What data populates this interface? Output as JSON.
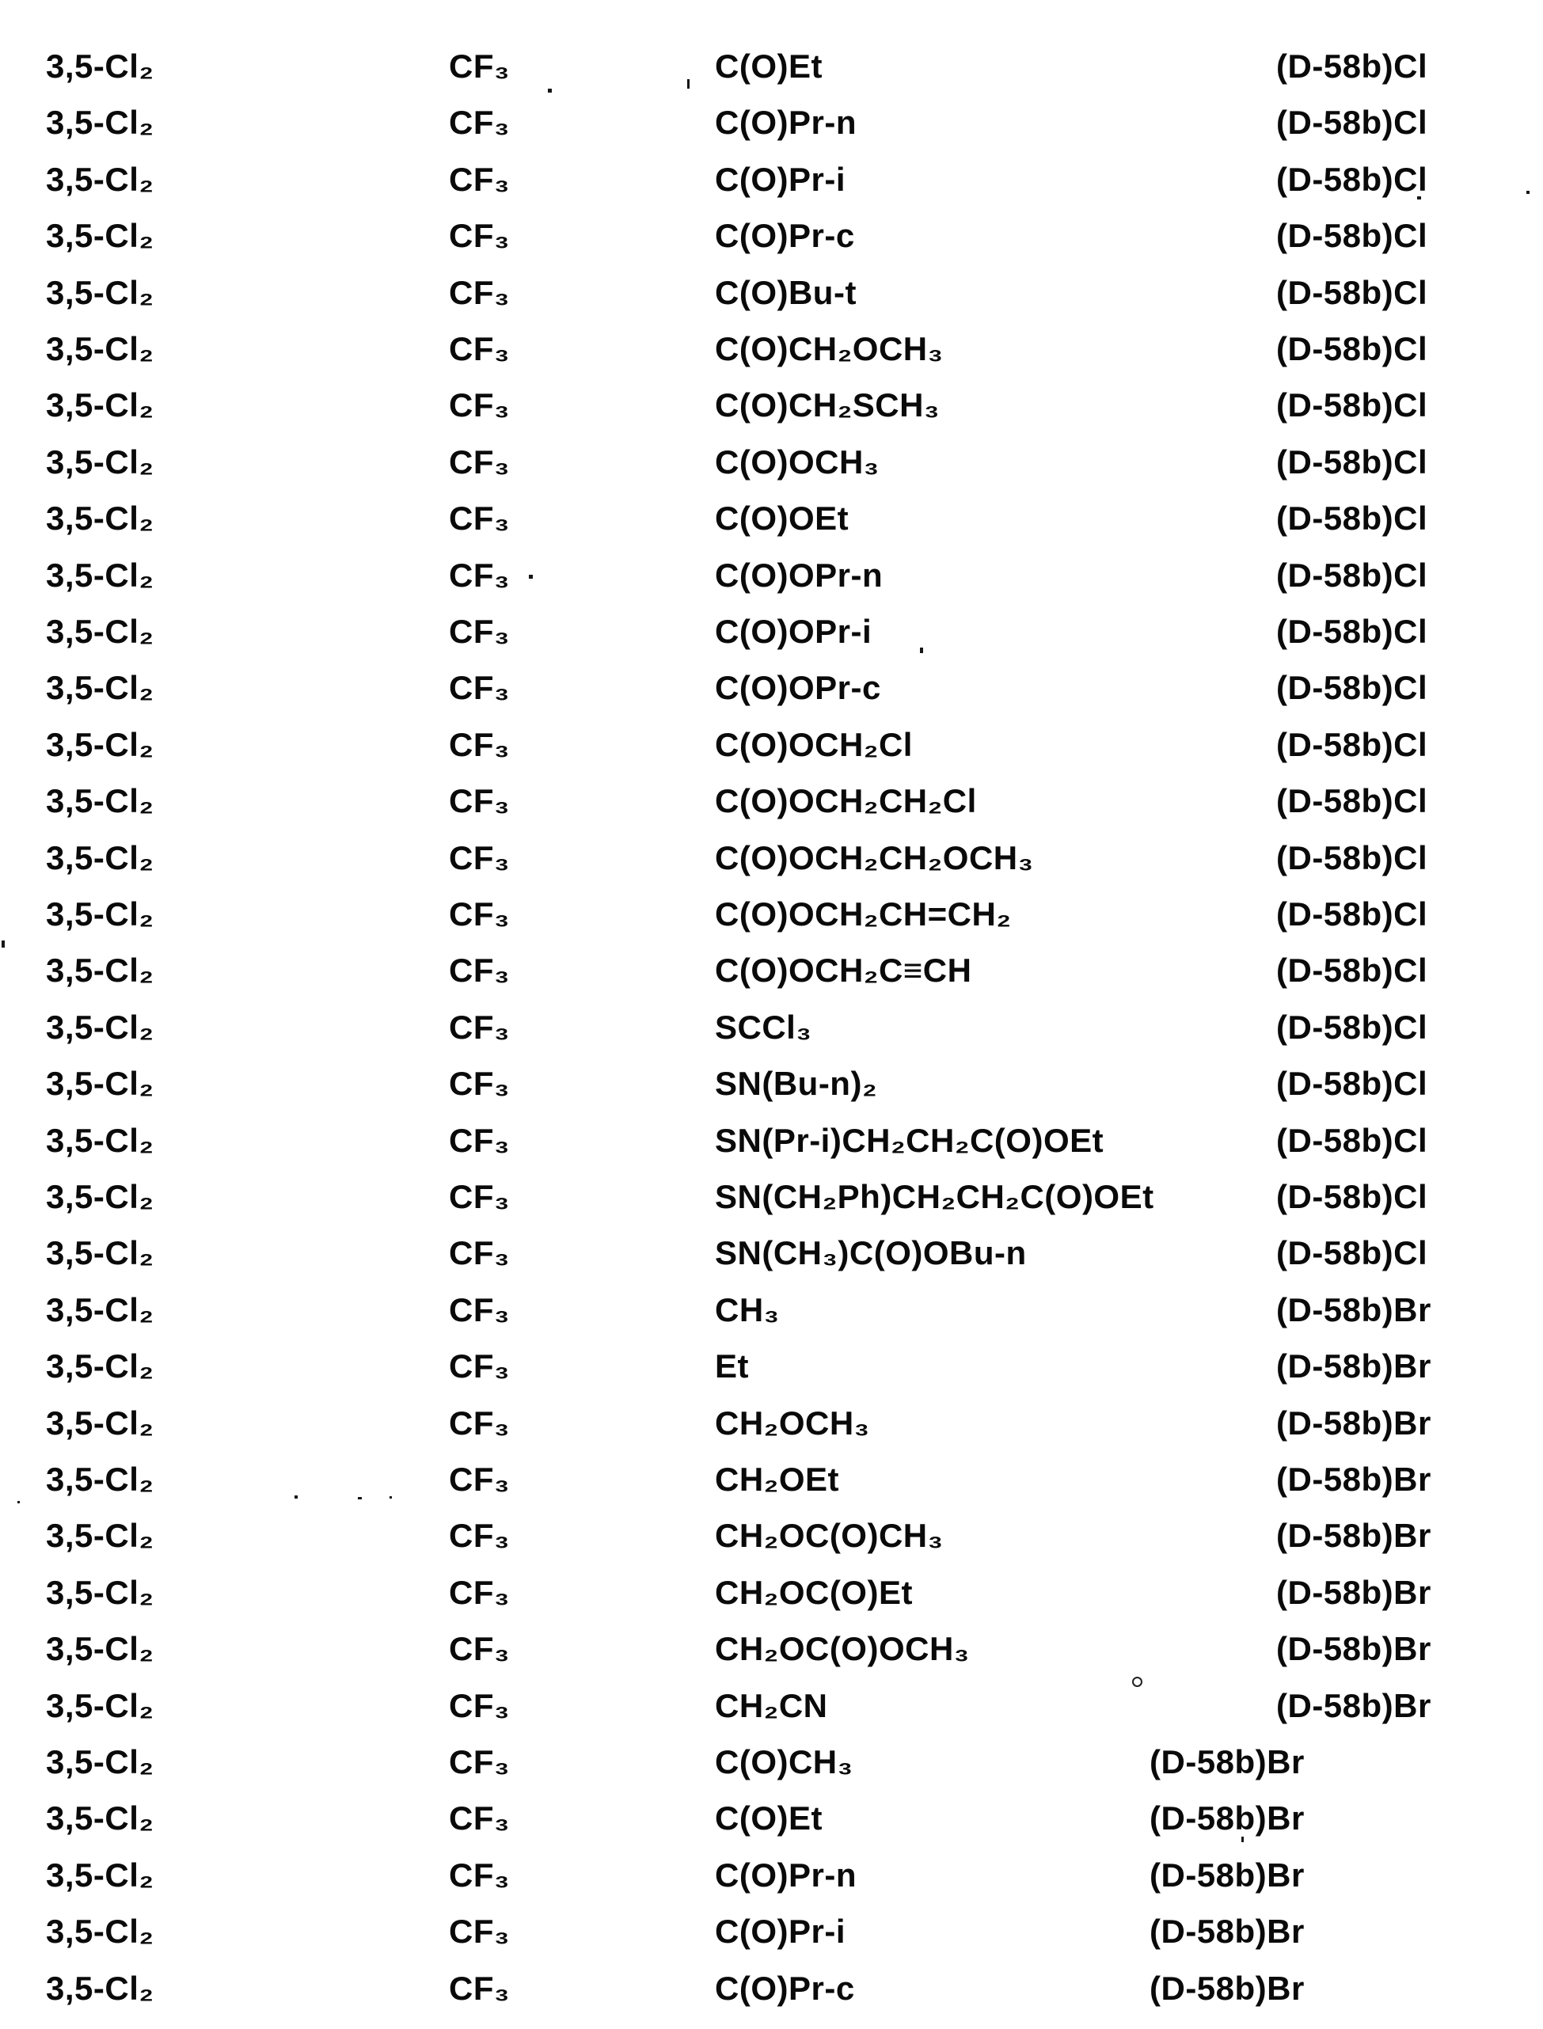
{
  "page": {
    "background": "#ffffff",
    "text_color": "#0a0a0a"
  },
  "table": {
    "rows": [
      {
        "c1": "3,5-Cl₂",
        "c2": "CF₃",
        "c3": "C(O)Et",
        "c4": "(D-58b)Cl",
        "shifted": false
      },
      {
        "c1": "3,5-Cl₂",
        "c2": "CF₃",
        "c3": "C(O)Pr-n",
        "c4": "(D-58b)Cl",
        "shifted": false
      },
      {
        "c1": "3,5-Cl₂",
        "c2": "CF₃",
        "c3": "C(O)Pr-i",
        "c4": "(D-58b)Cl",
        "shifted": false
      },
      {
        "c1": "3,5-Cl₂",
        "c2": "CF₃",
        "c3": "C(O)Pr-c",
        "c4": "(D-58b)Cl",
        "shifted": false
      },
      {
        "c1": "3,5-Cl₂",
        "c2": "CF₃",
        "c3": "C(O)Bu-t",
        "c4": "(D-58b)Cl",
        "shifted": false
      },
      {
        "c1": "3,5-Cl₂",
        "c2": "CF₃",
        "c3": "C(O)CH₂OCH₃",
        "c4": "(D-58b)Cl",
        "shifted": false
      },
      {
        "c1": "3,5-Cl₂",
        "c2": "CF₃",
        "c3": "C(O)CH₂SCH₃",
        "c4": "(D-58b)Cl",
        "shifted": false
      },
      {
        "c1": "3,5-Cl₂",
        "c2": "CF₃",
        "c3": "C(O)OCH₃",
        "c4": "(D-58b)Cl",
        "shifted": false
      },
      {
        "c1": "3,5-Cl₂",
        "c2": "CF₃",
        "c3": "C(O)OEt",
        "c4": "(D-58b)Cl",
        "shifted": false
      },
      {
        "c1": "3,5-Cl₂",
        "c2": "CF₃",
        "c3": "C(O)OPr-n",
        "c4": "(D-58b)Cl",
        "shifted": false
      },
      {
        "c1": "3,5-Cl₂",
        "c2": "CF₃",
        "c3": "C(O)OPr-i",
        "c4": "(D-58b)Cl",
        "shifted": false
      },
      {
        "c1": "3,5-Cl₂",
        "c2": "CF₃",
        "c3": "C(O)OPr-c",
        "c4": "(D-58b)Cl",
        "shifted": false
      },
      {
        "c1": "3,5-Cl₂",
        "c2": "CF₃",
        "c3": "C(O)OCH₂Cl",
        "c4": "(D-58b)Cl",
        "shifted": false
      },
      {
        "c1": "3,5-Cl₂",
        "c2": "CF₃",
        "c3": "C(O)OCH₂CH₂Cl",
        "c4": "(D-58b)Cl",
        "shifted": false
      },
      {
        "c1": "3,5-Cl₂",
        "c2": "CF₃",
        "c3": "C(O)OCH₂CH₂OCH₃",
        "c4": "(D-58b)Cl",
        "shifted": false
      },
      {
        "c1": "3,5-Cl₂",
        "c2": "CF₃",
        "c3": "C(O)OCH₂CH=CH₂",
        "c4": "(D-58b)Cl",
        "shifted": false
      },
      {
        "c1": "3,5-Cl₂",
        "c2": "CF₃",
        "c3": "C(O)OCH₂C≡CH",
        "c4": "(D-58b)Cl",
        "shifted": false
      },
      {
        "c1": "3,5-Cl₂",
        "c2": "CF₃",
        "c3": "SCCl₃",
        "c4": "(D-58b)Cl",
        "shifted": false
      },
      {
        "c1": "3,5-Cl₂",
        "c2": "CF₃",
        "c3": "SN(Bu-n)₂",
        "c4": "(D-58b)Cl",
        "shifted": false
      },
      {
        "c1": "3,5-Cl₂",
        "c2": "CF₃",
        "c3": "SN(Pr-i)CH₂CH₂C(O)OEt",
        "c4": "(D-58b)Cl",
        "shifted": false
      },
      {
        "c1": "3,5-Cl₂",
        "c2": "CF₃",
        "c3": "SN(CH₂Ph)CH₂CH₂C(O)OEt",
        "c4": "(D-58b)Cl",
        "shifted": false
      },
      {
        "c1": "3,5-Cl₂",
        "c2": "CF₃",
        "c3": "SN(CH₃)C(O)OBu-n",
        "c4": "(D-58b)Cl",
        "shifted": false
      },
      {
        "c1": "3,5-Cl₂",
        "c2": "CF₃",
        "c3": "CH₃",
        "c4": "(D-58b)Br",
        "shifted": false
      },
      {
        "c1": "3,5-Cl₂",
        "c2": "CF₃",
        "c3": "Et",
        "c4": "(D-58b)Br",
        "shifted": false
      },
      {
        "c1": "3,5-Cl₂",
        "c2": "CF₃",
        "c3": "CH₂OCH₃",
        "c4": "(D-58b)Br",
        "shifted": false
      },
      {
        "c1": "3,5-Cl₂",
        "c2": "CF₃",
        "c3": "CH₂OEt",
        "c4": "(D-58b)Br",
        "shifted": false
      },
      {
        "c1": "3,5-Cl₂",
        "c2": "CF₃",
        "c3": "CH₂OC(O)CH₃",
        "c4": "(D-58b)Br",
        "shifted": false
      },
      {
        "c1": "3,5-Cl₂",
        "c2": "CF₃",
        "c3": "CH₂OC(O)Et",
        "c4": "(D-58b)Br",
        "shifted": false
      },
      {
        "c1": "3,5-Cl₂",
        "c2": "CF₃",
        "c3": "CH₂OC(O)OCH₃",
        "c4": "(D-58b)Br",
        "shifted": false
      },
      {
        "c1": "3,5-Cl₂",
        "c2": "CF₃",
        "c3": "CH₂CN",
        "c4": "(D-58b)Br",
        "shifted": false
      },
      {
        "c1": "3,5-Cl₂",
        "c2": "CF₃",
        "c3": "C(O)CH₃",
        "c4": "(D-58b)Br",
        "shifted": true
      },
      {
        "c1": "3,5-Cl₂",
        "c2": "CF₃",
        "c3": "C(O)Et",
        "c4": "(D-58b)Br",
        "shifted": true
      },
      {
        "c1": "3,5-Cl₂",
        "c2": "CF₃",
        "c3": "C(O)Pr-n",
        "c4": "(D-58b)Br",
        "shifted": true
      },
      {
        "c1": "3,5-Cl₂",
        "c2": "CF₃",
        "c3": "C(O)Pr-i",
        "c4": "(D-58b)Br",
        "shifted": true
      },
      {
        "c1": "3,5-Cl₂",
        "c2": "CF₃",
        "c3": "C(O)Pr-c",
        "c4": "(D-58b)Br",
        "shifted": true
      }
    ]
  }
}
